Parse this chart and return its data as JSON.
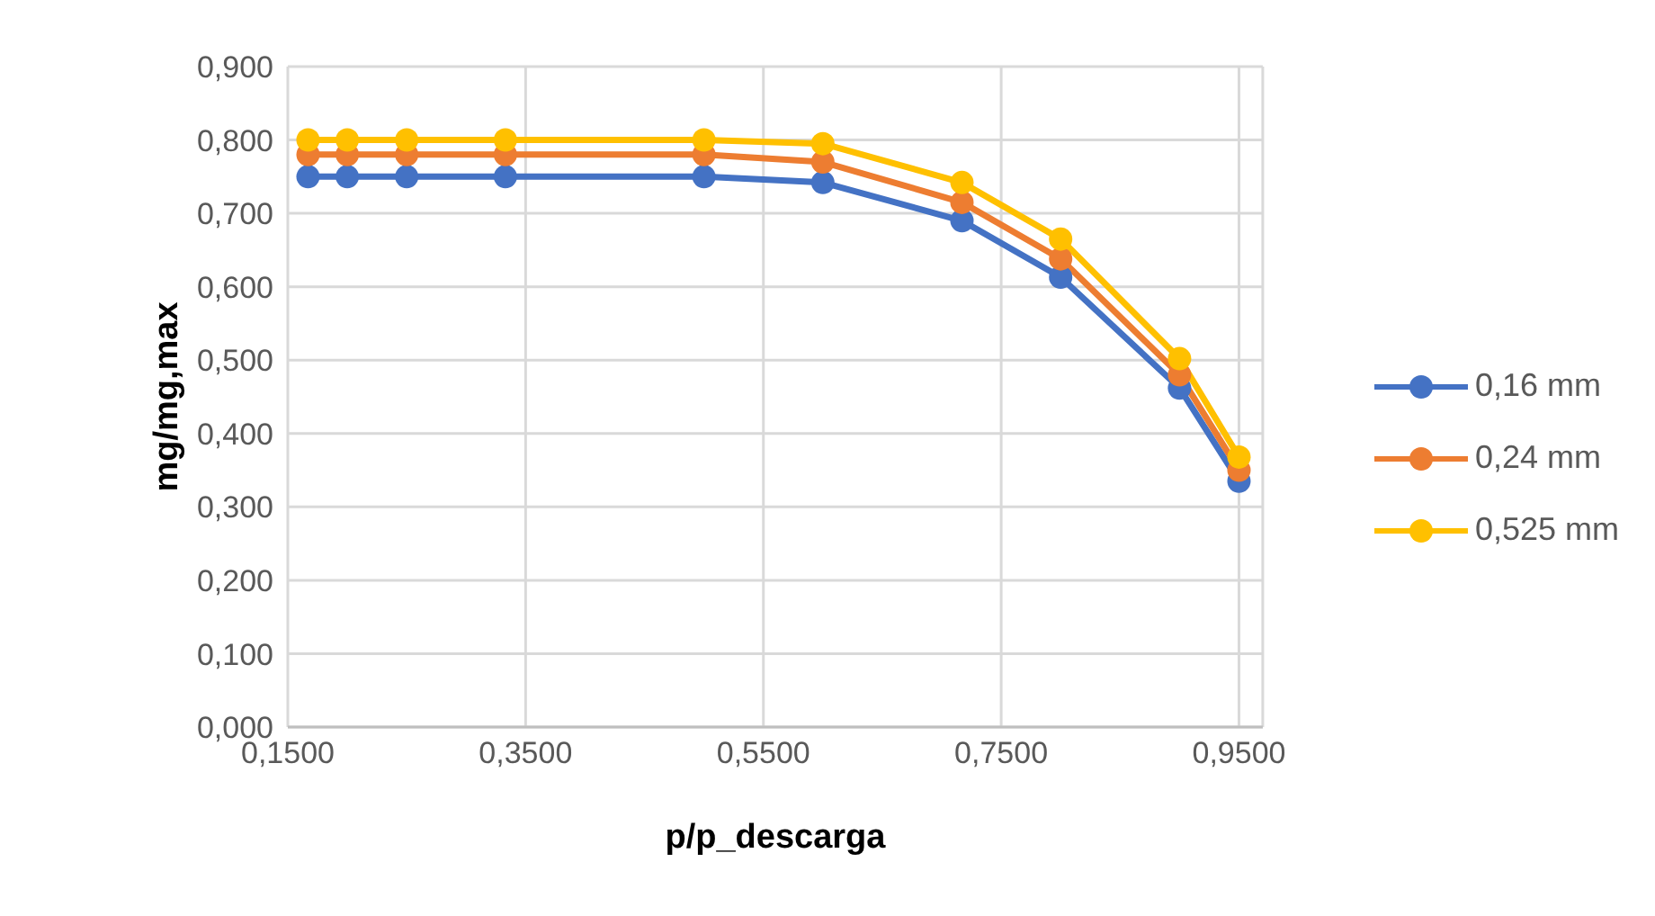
{
  "chart_data": {
    "type": "line",
    "xlabel": "p/p_descarga",
    "ylabel": "mg/mg,max",
    "x": [
      0.167,
      0.2,
      0.25,
      0.333,
      0.5,
      0.6,
      0.717,
      0.8,
      0.9,
      0.95
    ],
    "series": [
      {
        "name": "0,16 mm",
        "color": "#4472c4",
        "values": [
          0.75,
          0.75,
          0.75,
          0.75,
          0.75,
          0.742,
          0.69,
          0.613,
          0.462,
          0.335
        ]
      },
      {
        "name": "0,24 mm",
        "color": "#ed7d31",
        "values": [
          0.78,
          0.78,
          0.78,
          0.78,
          0.78,
          0.77,
          0.715,
          0.638,
          0.48,
          0.35
        ]
      },
      {
        "name": "0,525 mm",
        "color": "#ffc000",
        "values": [
          0.8,
          0.8,
          0.8,
          0.8,
          0.8,
          0.795,
          0.742,
          0.665,
          0.502,
          0.368
        ]
      }
    ],
    "xlim": [
      0.15,
      0.97
    ],
    "xticks": [
      {
        "value": 0.15,
        "label": "0,1500"
      },
      {
        "value": 0.35,
        "label": "0,3500"
      },
      {
        "value": 0.55,
        "label": "0,5500"
      },
      {
        "value": 0.75,
        "label": "0,7500"
      },
      {
        "value": 0.95,
        "label": "0,9500"
      }
    ],
    "ylim": [
      0,
      0.9
    ],
    "yticks": [
      {
        "value": 0,
        "label": "0,000"
      },
      {
        "value": 0.1,
        "label": "0,100"
      },
      {
        "value": 0.2,
        "label": "0,200"
      },
      {
        "value": 0.3,
        "label": "0,300"
      },
      {
        "value": 0.4,
        "label": "0,400"
      },
      {
        "value": 0.5,
        "label": "0,500"
      },
      {
        "value": 0.6,
        "label": "0,600"
      },
      {
        "value": 0.7,
        "label": "0,700"
      },
      {
        "value": 0.8,
        "label": "0,800"
      },
      {
        "value": 0.9,
        "label": "0,900"
      }
    ],
    "grid": true,
    "legend": "right",
    "marker": "circle",
    "line_style": "solid"
  }
}
